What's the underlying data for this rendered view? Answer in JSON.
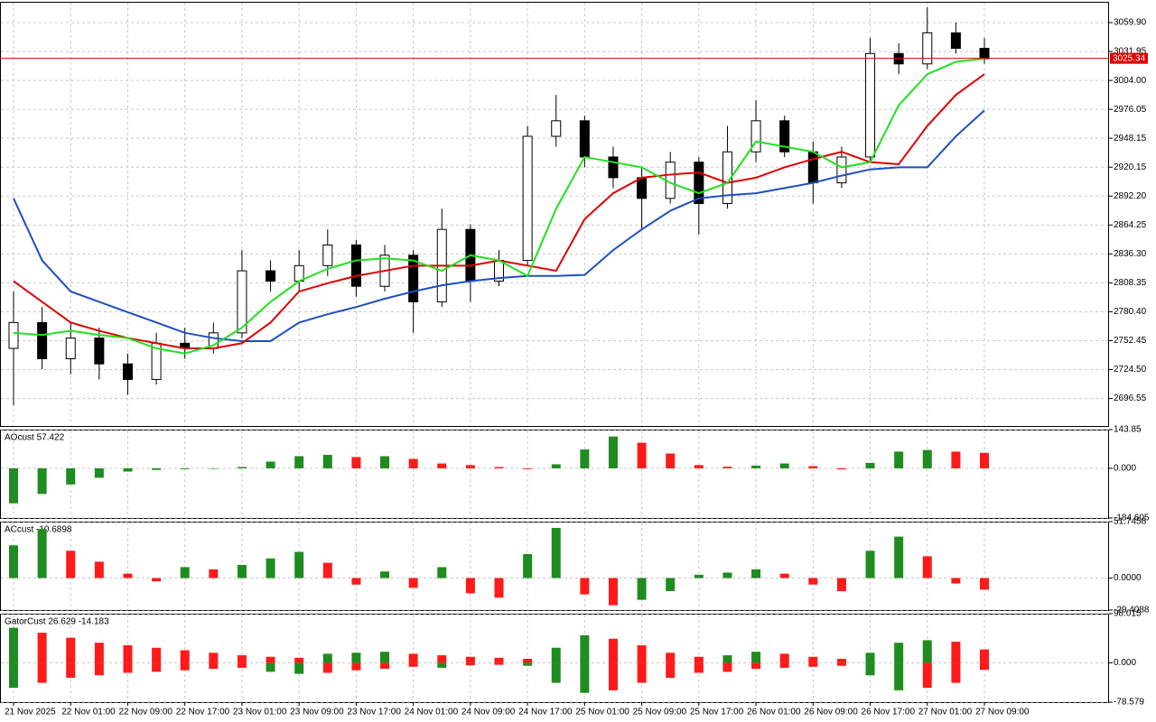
{
  "chart_data": {
    "type": "candlestick",
    "categories": [
      "21 Nov 2025",
      null,
      "22 Nov 01:00",
      null,
      "22 Nov 09:00",
      null,
      "22 Nov 17:00",
      null,
      "23 Nov 01:00",
      null,
      "23 Nov 09:00",
      null,
      "23 Nov 17:00",
      null,
      "24 Nov 01:00",
      null,
      "24 Nov 09:00",
      null,
      "24 Nov 17:00",
      null,
      "25 Nov 01:00",
      null,
      "25 Nov 09:00",
      null,
      "25 Nov 17:00",
      null,
      "26 Nov 01:00",
      null,
      "26 Nov 09:00",
      null,
      "26 Nov 17:00",
      null,
      "27 Nov 01:00",
      null,
      "27 Nov 09:00"
    ],
    "open": [
      2745,
      2770,
      2735,
      2755,
      2730,
      2715,
      2750,
      2745,
      2760,
      2820,
      2810,
      2825,
      2845,
      2805,
      2835,
      2790,
      2860,
      2810,
      2830,
      2950,
      2965,
      2930,
      2910,
      2890,
      2925,
      2885,
      2935,
      2965,
      2935,
      2905,
      2930,
      3030,
      3020,
      3050,
      3035
    ],
    "high": [
      2800,
      2785,
      2770,
      2765,
      2740,
      2760,
      2765,
      2770,
      2840,
      2830,
      2840,
      2860,
      2850,
      2845,
      2840,
      2880,
      2865,
      2840,
      2960,
      2990,
      2970,
      2940,
      2920,
      2935,
      2930,
      2960,
      2985,
      2970,
      2945,
      2940,
      3045,
      3040,
      3075,
      3060,
      3045
    ],
    "low": [
      2690,
      2725,
      2720,
      2715,
      2700,
      2710,
      2735,
      2740,
      2755,
      2800,
      2800,
      2815,
      2795,
      2800,
      2760,
      2785,
      2790,
      2805,
      2825,
      2940,
      2920,
      2900,
      2860,
      2885,
      2855,
      2880,
      2925,
      2930,
      2885,
      2900,
      2925,
      3010,
      3015,
      3030,
      3020
    ],
    "close": [
      2770,
      2735,
      2755,
      2730,
      2715,
      2750,
      2745,
      2760,
      2820,
      2810,
      2825,
      2845,
      2805,
      2835,
      2790,
      2860,
      2810,
      2830,
      2950,
      2965,
      2930,
      2910,
      2890,
      2925,
      2885,
      2935,
      2965,
      2935,
      2905,
      2930,
      3030,
      3020,
      3050,
      3035,
      3025
    ],
    "series": [
      {
        "color": "#1f4fbf",
        "values": [
          2890,
          2830,
          2800,
          2790,
          2780,
          2770,
          2760,
          2755,
          2752,
          2752,
          2770,
          2778,
          2785,
          2793,
          2800,
          2806,
          2810,
          2813,
          2815,
          2815,
          2816,
          2840,
          2860,
          2878,
          2890,
          2893,
          2895,
          2900,
          2905,
          2912,
          2918,
          2920,
          2920,
          2950,
          2975
        ]
      },
      {
        "color": "#e00000",
        "values": [
          2810,
          2790,
          2770,
          2762,
          2755,
          2750,
          2745,
          2745,
          2750,
          2770,
          2800,
          2808,
          2815,
          2820,
          2825,
          2825,
          2825,
          2830,
          2825,
          2820,
          2870,
          2895,
          2910,
          2913,
          2915,
          2905,
          2910,
          2920,
          2928,
          2935,
          2925,
          2923,
          2960,
          2990,
          3010
        ]
      },
      {
        "color": "#22e022",
        "values": [
          2760,
          2758,
          2762,
          2758,
          2755,
          2745,
          2740,
          2748,
          2765,
          2790,
          2810,
          2822,
          2830,
          2832,
          2830,
          2820,
          2835,
          2830,
          2815,
          2880,
          2930,
          2925,
          2920,
          2905,
          2895,
          2905,
          2945,
          2940,
          2935,
          2920,
          2925,
          2980,
          3010,
          3022,
          3025
        ]
      }
    ],
    "ylim": [
      2670,
      3080
    ],
    "yticks": [
      {
        "value": 3059.9,
        "label": "3059.90"
      },
      3031.95,
      {
        "value": 3004,
        "label": "3004.00"
      },
      2976.05,
      2948.15,
      2920.15,
      {
        "value": 2892.2,
        "label": "2892.20"
      },
      2864.25,
      {
        "value": 2836.3,
        "label": "2836.30"
      },
      2808.35,
      {
        "value": 2780.4,
        "label": "2780.40"
      },
      2752.45,
      {
        "value": 2724.5,
        "label": "2724.50"
      },
      2696.55
    ],
    "current_price": 3025.34,
    "current_price_color": "#e00000",
    "grid": true,
    "indicators": [
      {
        "title": "AOcust 57.422",
        "mode": "rise",
        "up_color": "#1e8c1e",
        "down_color": "#ff1a1a",
        "ylim": [
          -184.605,
          143.85
        ],
        "yticks": [
          143.85,
          {
            "value": 0,
            "label": "0.000"
          },
          -184.605
        ],
        "series": [
          {
            "values": [
              -130,
              -95,
              -60,
              -35,
              -12,
              -6,
              -3,
              -2,
              5,
              25,
              45,
              50,
              42,
              45,
              35,
              18,
              12,
              5,
              -3,
              15,
              70,
              118,
              95,
              55,
              12,
              6,
              10,
              18,
              8,
              -4,
              20,
              62,
              68,
              62,
              57.422
            ]
          }
        ]
      },
      {
        "title": "ACcust -10.6898",
        "mode": "rise",
        "up_color": "#1e8c1e",
        "down_color": "#ff1a1a",
        "ylim": [
          -29.4088,
          51.7458
        ],
        "yticks": [
          51.7458,
          {
            "value": 0,
            "label": "0.0000"
          },
          -29.4088
        ],
        "series": [
          {
            "values": [
              30,
              45,
              25,
              15,
              4,
              -3,
              10,
              8,
              12,
              18,
              24,
              14,
              -6,
              6,
              -9,
              10,
              -14,
              -18,
              22,
              46,
              -15,
              -25,
              -20,
              -12,
              3,
              5,
              8,
              4,
              -6,
              -12,
              25,
              38,
              20,
              -5,
              -10.6898
            ]
          }
        ]
      },
      {
        "title": "GatorCust 26.629 -14.183",
        "mode": "magnitude",
        "up_color": "#1e8c1e",
        "down_color": "#ff1a1a",
        "ylim": [
          -78.579,
          98.015
        ],
        "yticks": [
          98.015,
          {
            "value": 0,
            "label": "0.000"
          },
          -78.579
        ],
        "series": [
          {
            "values": [
              70,
              60,
              50,
              40,
              35,
              30,
              25,
              20,
              15,
              12,
              10,
              18,
              20,
              22,
              18,
              15,
              12,
              10,
              8,
              30,
              55,
              48,
              35,
              20,
              12,
              15,
              22,
              18,
              12,
              8,
              20,
              40,
              45,
              42,
              26.629
            ]
          },
          {
            "values": [
              -50,
              -40,
              -30,
              -25,
              -20,
              -18,
              -15,
              -12,
              -10,
              -18,
              -22,
              -20,
              -15,
              -12,
              -8,
              -10,
              -5,
              -4,
              -6,
              -40,
              -60,
              -55,
              -40,
              -30,
              -20,
              -18,
              -12,
              -10,
              -8,
              -6,
              -25,
              -55,
              -50,
              -40,
              -14.183
            ]
          }
        ]
      }
    ]
  }
}
